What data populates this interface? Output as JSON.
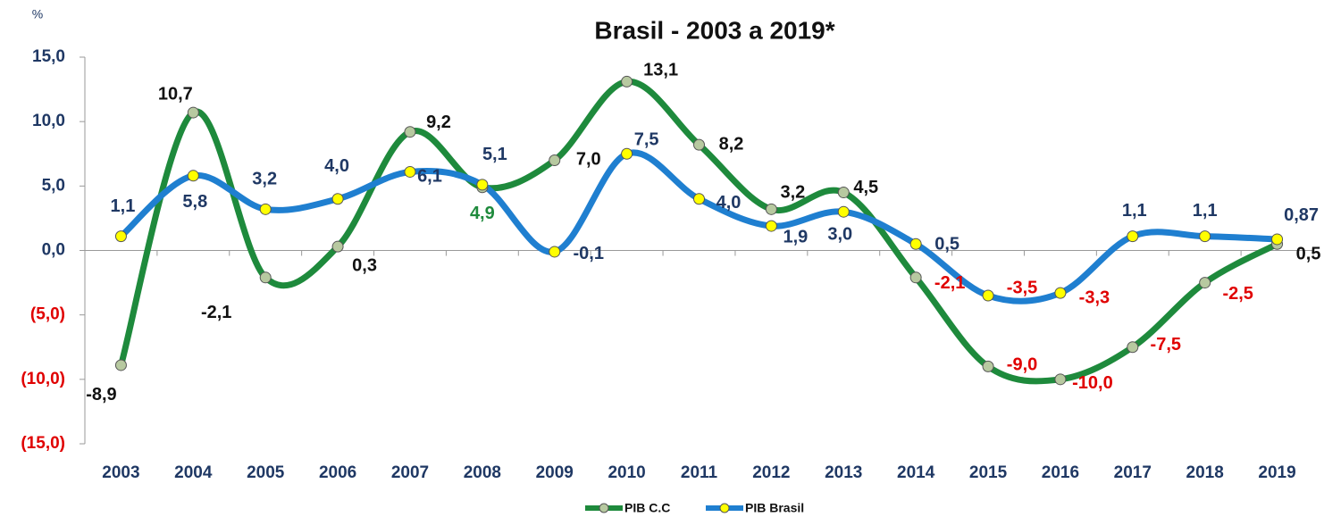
{
  "chart_data": {
    "type": "line",
    "title": "Brasil - 2003 a 2019*",
    "ylabel": "%",
    "categories": [
      "2003",
      "2004",
      "2005",
      "2006",
      "2007",
      "2008",
      "2009",
      "2010",
      "2011",
      "2012",
      "2013",
      "2014",
      "2015",
      "2016",
      "2017",
      "2018",
      "2019"
    ],
    "ylim": [
      -15,
      15
    ],
    "yticks": [
      {
        "value": 15,
        "label": "15,0"
      },
      {
        "value": 10,
        "label": "10,0"
      },
      {
        "value": 5,
        "label": "5,0"
      },
      {
        "value": 0,
        "label": "0,0"
      },
      {
        "value": -5,
        "label": "(5,0)"
      },
      {
        "value": -10,
        "label": "(10,0)"
      },
      {
        "value": -15,
        "label": "(15,0)"
      }
    ],
    "ytick_colors": [
      "#1f3864",
      "#1f3864",
      "#1f3864",
      "#1f3864",
      "#e00000",
      "#e00000",
      "#e00000"
    ],
    "series": [
      {
        "name": "PIB C.C",
        "color": "#1e8a3c",
        "marker_color": "#b7c9a0",
        "values": [
          -8.9,
          10.7,
          -2.1,
          0.3,
          9.2,
          4.9,
          7.0,
          13.1,
          8.2,
          3.2,
          4.5,
          -2.1,
          -9.0,
          -10.0,
          -7.5,
          -2.5,
          0.5
        ],
        "value_labels": [
          "-8,9",
          "10,7",
          "-2,1",
          "0,3",
          "9,2",
          "4,9",
          "7,0",
          "13,1",
          "8,2",
          "3,2",
          "4,5",
          "-2,1",
          "-9,0",
          "-10,0",
          "-7,5",
          "-2,5",
          "0,5"
        ],
        "label_colors": [
          "#111",
          "#111",
          "#111",
          "#111",
          "#111",
          "#1e8a3c",
          "#111",
          "#111",
          "#111",
          "#111",
          "#111",
          "#e00000",
          "#e00000",
          "#e00000",
          "#e00000",
          "#e00000",
          "#111"
        ]
      },
      {
        "name": "PIB Brasil",
        "color": "#1f7fd0",
        "marker_color": "#ffff00",
        "values": [
          1.1,
          5.8,
          3.2,
          4.0,
          6.1,
          5.1,
          -0.1,
          7.5,
          4.0,
          1.9,
          3.0,
          0.5,
          -3.5,
          -3.3,
          1.1,
          1.1,
          0.87
        ],
        "value_labels": [
          "1,1",
          "5,8",
          "3,2",
          "4,0",
          "6,1",
          "5,1",
          "-0,1",
          "7,5",
          "4,0",
          "1,9",
          "3,0",
          "0,5",
          "-3,5",
          "-3,3",
          "1,1",
          "1,1",
          "0,87"
        ],
        "label_colors": [
          "#1f3864",
          "#1f3864",
          "#1f3864",
          "#1f3864",
          "#1f3864",
          "#1f3864",
          "#1f3864",
          "#1f3864",
          "#1f3864",
          "#1f3864",
          "#1f3864",
          "#1f3864",
          "#e00000",
          "#e00000",
          "#1f3864",
          "#1f3864",
          "#1f3864"
        ]
      }
    ]
  }
}
